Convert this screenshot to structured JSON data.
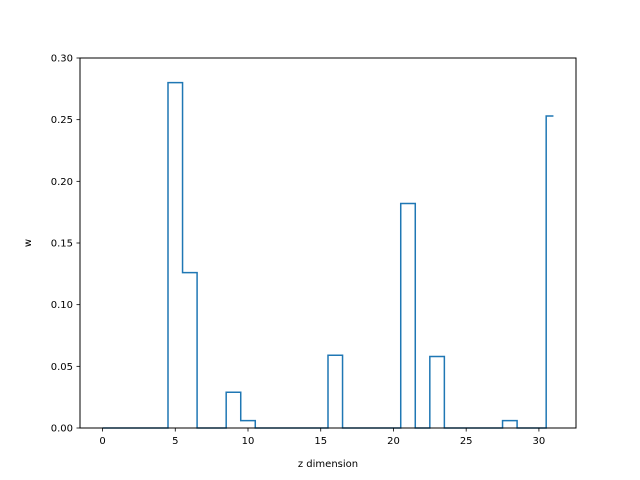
{
  "chart_data": {
    "type": "line",
    "step": "mid",
    "title": "",
    "xlabel": "z dimension",
    "ylabel": "w",
    "xlim": [
      -1.55,
      32.55
    ],
    "ylim": [
      0.0,
      0.3
    ],
    "xticks": [
      0,
      5,
      10,
      15,
      20,
      25,
      30
    ],
    "xtick_labels": [
      "0",
      "5",
      "10",
      "15",
      "20",
      "25",
      "30"
    ],
    "yticks": [
      0.0,
      0.05,
      0.1,
      0.15,
      0.2,
      0.25,
      0.3
    ],
    "ytick_labels": [
      "0.00",
      "0.05",
      "0.10",
      "0.15",
      "0.20",
      "0.25",
      "0.30"
    ],
    "grid": false,
    "series": [
      {
        "color": "#1f77b4",
        "x": [
          0,
          1,
          2,
          3,
          4,
          5,
          6,
          7,
          8,
          9,
          10,
          11,
          12,
          13,
          14,
          15,
          16,
          17,
          18,
          19,
          20,
          21,
          22,
          23,
          24,
          25,
          26,
          27,
          28,
          29,
          30,
          31
        ],
        "y": [
          0,
          0,
          0,
          0,
          0,
          0.28,
          0.126,
          0,
          0,
          0.029,
          0.006,
          0,
          0,
          0,
          0,
          0,
          0.059,
          0,
          0,
          0,
          0,
          0.182,
          0,
          0.058,
          0,
          0,
          0,
          0,
          0.006,
          0,
          0,
          0.253
        ]
      }
    ]
  }
}
